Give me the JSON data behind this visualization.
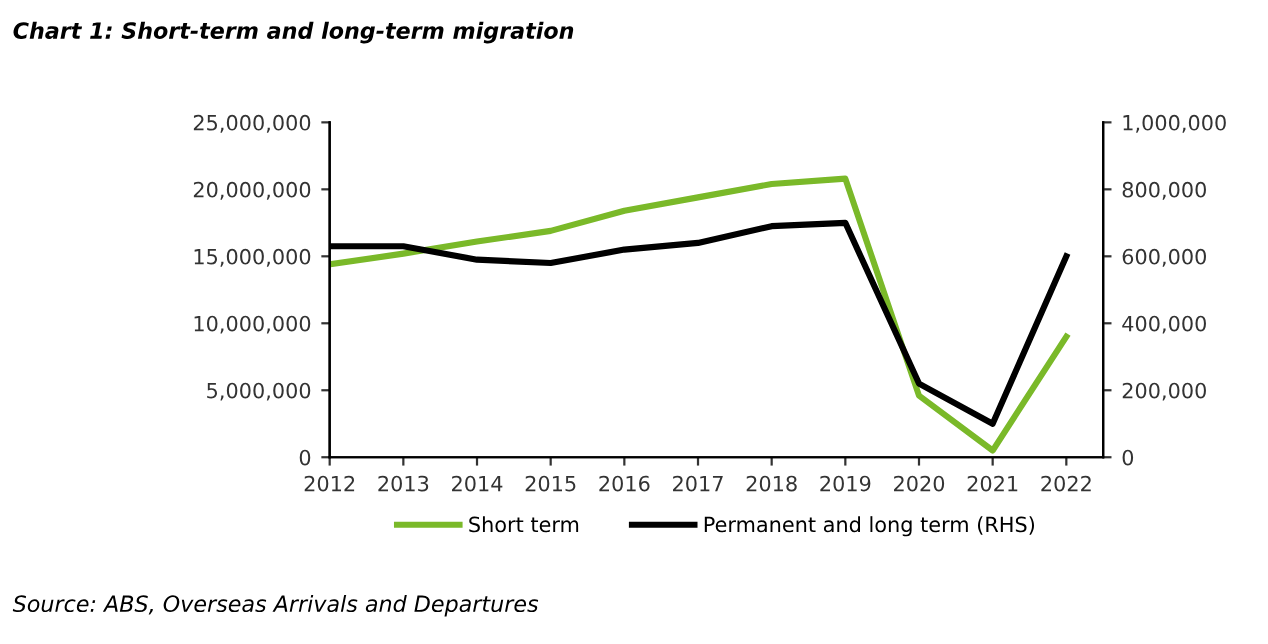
{
  "chart_data": {
    "type": "line",
    "title": "Chart 1: Short-term and long-term migration",
    "x": [
      2012,
      2013,
      2014,
      2015,
      2016,
      2017,
      2018,
      2019,
      2020,
      2021,
      2022
    ],
    "series": [
      {
        "name": "Short term",
        "color": "#7ab929",
        "values": [
          14400000,
          15200000,
          16100000,
          16900000,
          18400000,
          19400000,
          20400000,
          20800000,
          4600000,
          500000,
          9000000
        ]
      },
      {
        "name": "Permanent and long term (RHS)",
        "color": "#000000",
        "axis": "y2",
        "values": [
          630000,
          630000,
          590000,
          580000,
          620000,
          640000,
          690000,
          700000,
          220000,
          100000,
          600000
        ]
      }
    ],
    "xlim": [
      2012,
      2022.5
    ],
    "xticks": [
      2012,
      2013,
      2014,
      2015,
      2016,
      2017,
      2018,
      2019,
      2020,
      2021,
      2022
    ],
    "ylim": [
      0,
      25000000
    ],
    "yticks": [
      0,
      {
        "value": 5000000,
        "label": "5,000,000"
      },
      {
        "value": 10000000,
        "label": "10,000,000"
      },
      {
        "value": 15000000,
        "label": "15,000,000"
      },
      {
        "value": 20000000,
        "label": "20,000,000"
      },
      {
        "value": 25000000,
        "label": "25,000,000"
      }
    ],
    "y2lim": [
      0,
      1000000
    ],
    "y2ticks": [
      0,
      {
        "value": 200000,
        "label": "200,000"
      },
      {
        "value": 400000,
        "label": "400,000"
      },
      {
        "value": 600000,
        "label": "600,000"
      },
      {
        "value": 800000,
        "label": "800,000"
      },
      {
        "value": 1000000,
        "label": "1,000,000"
      }
    ],
    "legend": "bottom",
    "grid": false,
    "annotations": [
      "Source: ABS, Overseas Arrivals and Departures"
    ]
  }
}
